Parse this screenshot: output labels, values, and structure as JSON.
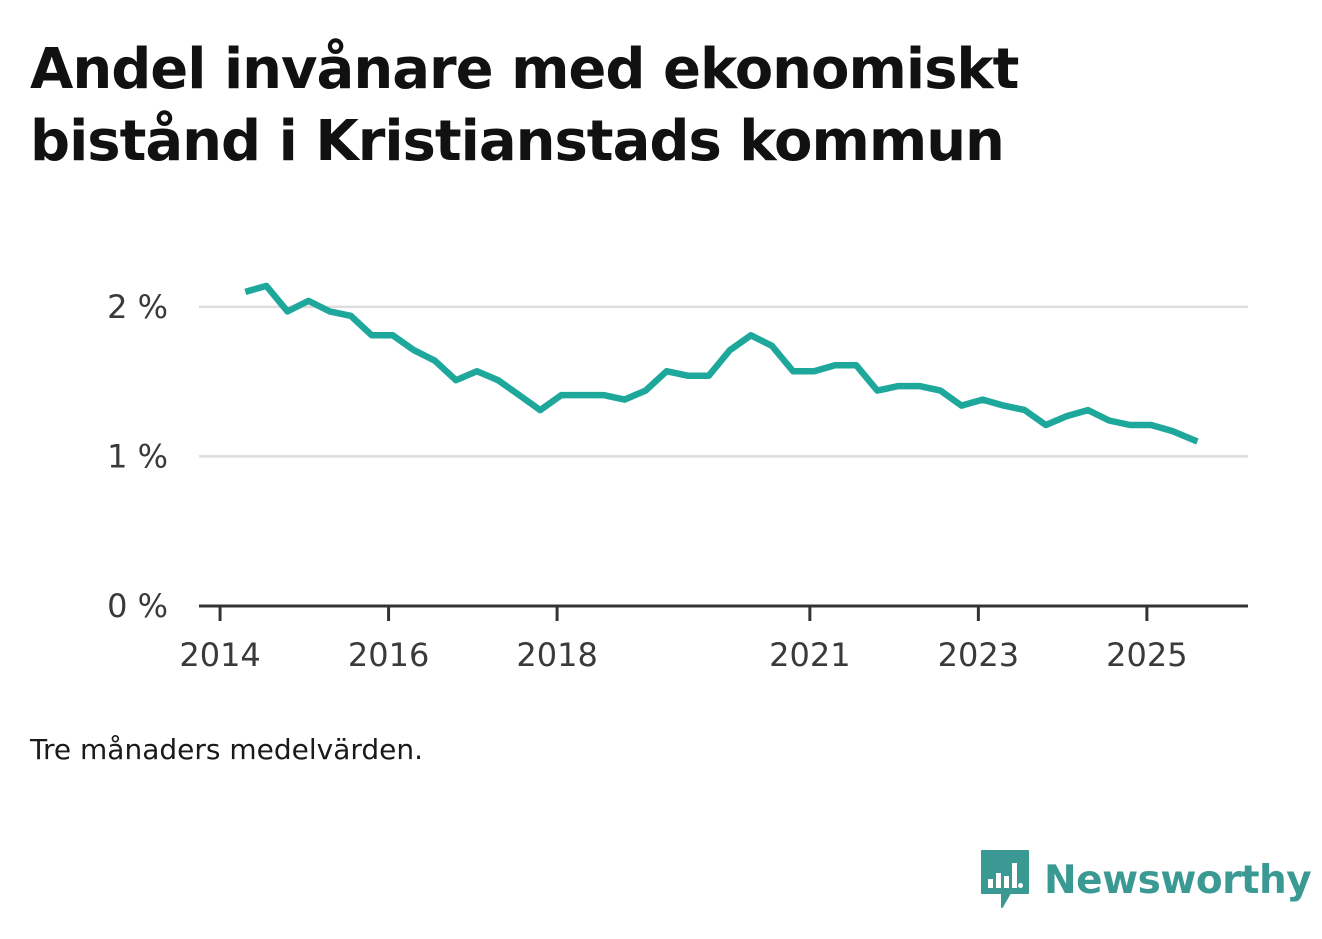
{
  "header": {
    "title": "Andel invånare med ekonomiskt bistånd i Kristianstads kommun"
  },
  "footnote": "Tre månaders medelvärden.",
  "brand": {
    "name": "Newsworthy",
    "logo_icon": "bar-chart-speech-bubble-icon",
    "color": "#3a9a93"
  },
  "colors": {
    "line": "#1ea89c",
    "grid": "#dddddd",
    "axis": "#333333"
  },
  "chart_data": {
    "type": "line",
    "title": "Andel invånare med ekonomiskt bistånd i Kristianstads kommun",
    "xlabel": "",
    "ylabel": "",
    "x_tick_labels": [
      "2014",
      "2016",
      "2018",
      "2021",
      "2023",
      "2025"
    ],
    "x_tick_values": [
      2014.0,
      2016.0,
      2018.0,
      2021.0,
      2023.0,
      2025.0
    ],
    "y_tick_labels": [
      "0 %",
      "1 %",
      "2 %"
    ],
    "y_tick_values": [
      0,
      1,
      2
    ],
    "xlim": [
      2013.75,
      2026.2
    ],
    "ylim": [
      0,
      2.3
    ],
    "grid": true,
    "series": [
      {
        "name": "Andel invånare med ekonomiskt bistånd",
        "x": [
          2014.3,
          2014.55,
          2014.8,
          2015.05,
          2015.3,
          2015.55,
          2015.8,
          2016.05,
          2016.3,
          2016.55,
          2016.8,
          2017.05,
          2017.3,
          2017.55,
          2017.8,
          2018.05,
          2018.3,
          2018.55,
          2018.8,
          2019.05,
          2019.3,
          2019.55,
          2019.8,
          2020.05,
          2020.3,
          2020.55,
          2020.8,
          2021.05,
          2021.3,
          2021.55,
          2021.8,
          2022.05,
          2022.3,
          2022.55,
          2022.8,
          2023.05,
          2023.3,
          2023.55,
          2023.8,
          2024.05,
          2024.3,
          2024.55,
          2024.8,
          2025.05,
          2025.3,
          2025.6
        ],
        "values": [
          2.1,
          2.14,
          1.97,
          2.04,
          1.97,
          1.94,
          1.81,
          1.81,
          1.71,
          1.64,
          1.51,
          1.57,
          1.51,
          1.41,
          1.31,
          1.41,
          1.41,
          1.41,
          1.38,
          1.44,
          1.57,
          1.54,
          1.54,
          1.71,
          1.81,
          1.74,
          1.57,
          1.57,
          1.61,
          1.61,
          1.44,
          1.47,
          1.47,
          1.44,
          1.34,
          1.38,
          1.34,
          1.31,
          1.21,
          1.27,
          1.31,
          1.24,
          1.21,
          1.21,
          1.17,
          1.1
        ]
      }
    ]
  }
}
